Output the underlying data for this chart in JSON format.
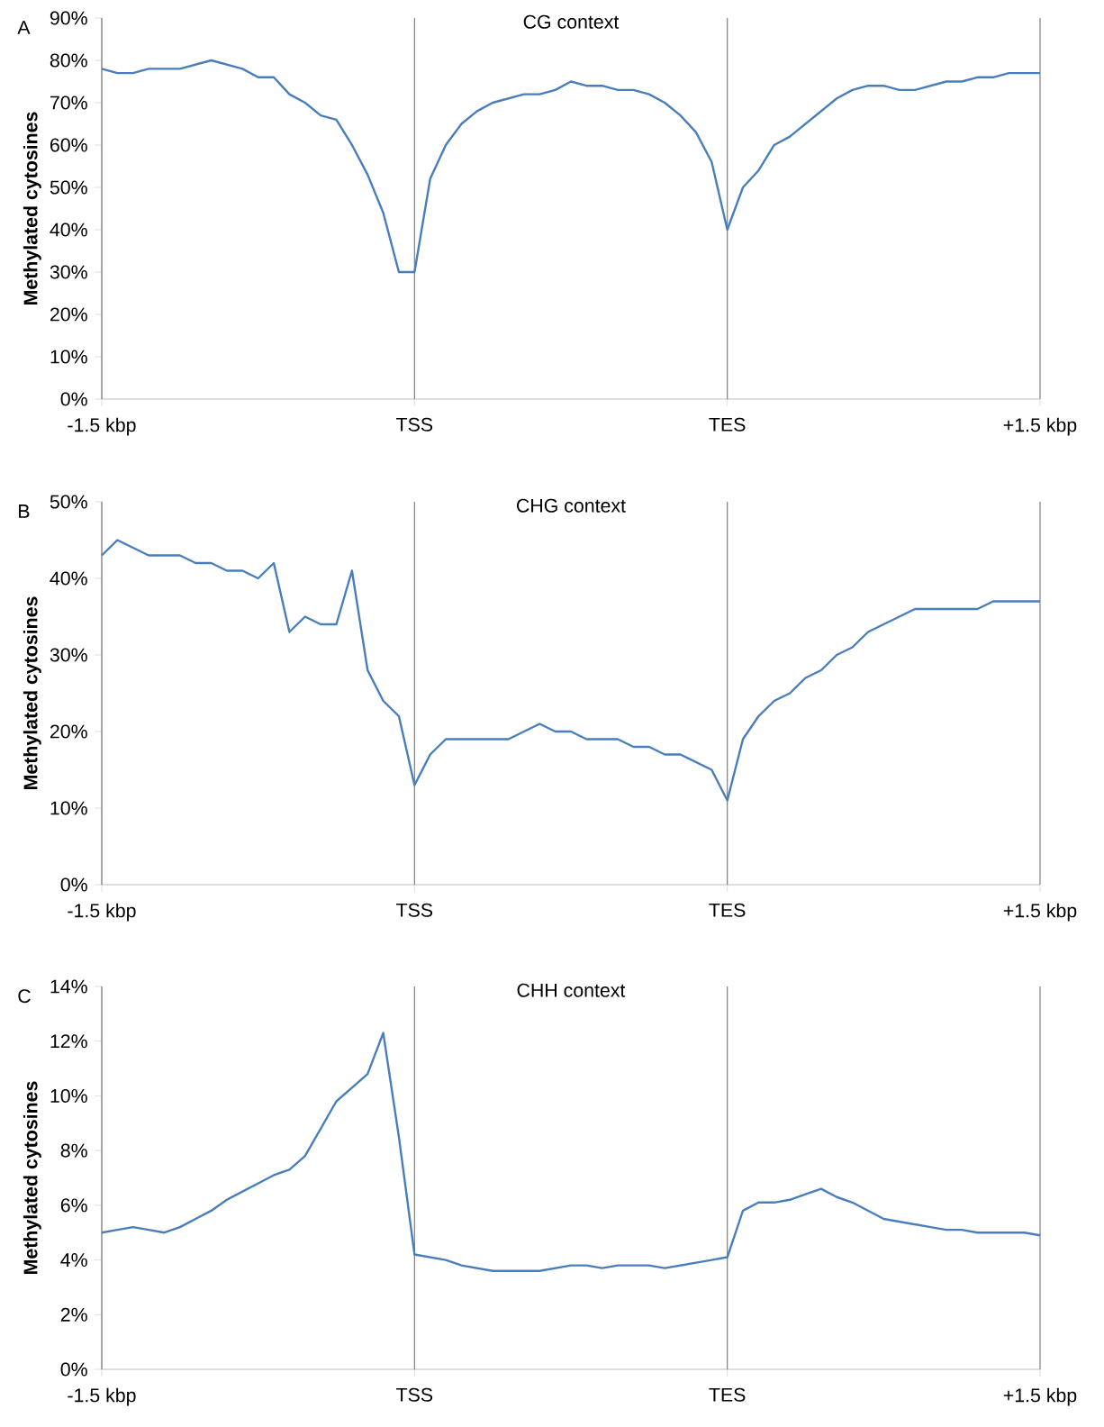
{
  "chart_data": [
    {
      "type": "line",
      "title": "CG context",
      "ylabel": "Methylated cytosines",
      "annotations": [
        "A"
      ],
      "grid": "x",
      "categories": [
        "-1.5 kbp",
        null,
        null,
        null,
        null,
        null,
        null,
        null,
        null,
        null,
        null,
        null,
        null,
        null,
        null,
        null,
        null,
        null,
        null,
        null,
        "TSS",
        null,
        null,
        null,
        null,
        null,
        null,
        null,
        null,
        null,
        null,
        null,
        null,
        null,
        null,
        null,
        null,
        null,
        null,
        null,
        "TES",
        null,
        null,
        null,
        null,
        null,
        null,
        null,
        null,
        null,
        null,
        null,
        null,
        null,
        null,
        null,
        null,
        null,
        null,
        null,
        "+1.5 kbp"
      ],
      "ylim": [
        0,
        90
      ],
      "yticks": [
        {
          "value": 0,
          "label": "0%"
        },
        {
          "value": 10,
          "label": "10%"
        },
        {
          "value": 20,
          "label": "20%"
        },
        {
          "value": 30,
          "label": "30%"
        },
        {
          "value": 40,
          "label": "40%"
        },
        {
          "value": 50,
          "label": "50%"
        },
        {
          "value": 60,
          "label": "60%"
        },
        {
          "value": 70,
          "label": "70%"
        },
        {
          "value": 80,
          "label": "80%"
        },
        {
          "value": 90,
          "label": "90%"
        }
      ],
      "series": [
        {
          "color": "#4a7ebb",
          "values": [
            78,
            77,
            77,
            78,
            78,
            78,
            79,
            80,
            79,
            78,
            76,
            76,
            72,
            70,
            67,
            66,
            60,
            53,
            44,
            30,
            30,
            52,
            60,
            65,
            68,
            70,
            71,
            72,
            72,
            73,
            75,
            74,
            74,
            73,
            73,
            72,
            70,
            67,
            63,
            56,
            40,
            50,
            54,
            60,
            62,
            65,
            68,
            71,
            73,
            74,
            74,
            73,
            73,
            74,
            75,
            75,
            76,
            76,
            77,
            77,
            77
          ]
        }
      ]
    },
    {
      "type": "line",
      "title": "CHG context",
      "ylabel": "Methylated cytosines",
      "annotations": [
        "B"
      ],
      "grid": "x",
      "categories": [
        "-1.5 kbp",
        null,
        null,
        null,
        null,
        null,
        null,
        null,
        null,
        null,
        null,
        null,
        null,
        null,
        null,
        null,
        null,
        null,
        null,
        null,
        "TSS",
        null,
        null,
        null,
        null,
        null,
        null,
        null,
        null,
        null,
        null,
        null,
        null,
        null,
        null,
        null,
        null,
        null,
        null,
        null,
        "TES",
        null,
        null,
        null,
        null,
        null,
        null,
        null,
        null,
        null,
        null,
        null,
        null,
        null,
        null,
        null,
        null,
        null,
        null,
        null,
        "+1.5 kbp"
      ],
      "ylim": [
        0,
        50
      ],
      "yticks": [
        {
          "value": 0,
          "label": "0%"
        },
        {
          "value": 10,
          "label": "10%"
        },
        {
          "value": 20,
          "label": "20%"
        },
        {
          "value": 30,
          "label": "30%"
        },
        {
          "value": 40,
          "label": "40%"
        },
        {
          "value": 50,
          "label": "50%"
        }
      ],
      "series": [
        {
          "color": "#4a7ebb",
          "values": [
            43,
            45,
            44,
            43,
            43,
            43,
            42,
            42,
            41,
            41,
            40,
            42,
            33,
            35,
            34,
            34,
            41,
            28,
            24,
            22,
            13,
            17,
            19,
            19,
            19,
            19,
            19,
            20,
            21,
            20,
            20,
            19,
            19,
            19,
            18,
            18,
            17,
            17,
            16,
            15,
            11,
            19,
            22,
            24,
            25,
            27,
            28,
            30,
            31,
            33,
            34,
            35,
            36,
            36,
            36,
            36,
            36,
            37,
            37,
            37,
            37
          ]
        }
      ]
    },
    {
      "type": "line",
      "title": "CHH context",
      "ylabel": "Methylated cytosines",
      "annotations": [
        "C"
      ],
      "grid": "x",
      "categories": [
        "-1.5 kbp",
        null,
        null,
        null,
        null,
        null,
        null,
        null,
        null,
        null,
        null,
        null,
        null,
        null,
        null,
        null,
        null,
        null,
        null,
        null,
        "TSS",
        null,
        null,
        null,
        null,
        null,
        null,
        null,
        null,
        null,
        null,
        null,
        null,
        null,
        null,
        null,
        null,
        null,
        null,
        null,
        "TES",
        null,
        null,
        null,
        null,
        null,
        null,
        null,
        null,
        null,
        null,
        null,
        null,
        null,
        null,
        null,
        null,
        null,
        null,
        null,
        "+1.5 kbp"
      ],
      "ylim": [
        0,
        14
      ],
      "yticks": [
        {
          "value": 0,
          "label": "0%"
        },
        {
          "value": 2,
          "label": "2%"
        },
        {
          "value": 4,
          "label": "4%"
        },
        {
          "value": 6,
          "label": "6%"
        },
        {
          "value": 8,
          "label": "8%"
        },
        {
          "value": 10,
          "label": "10%"
        },
        {
          "value": 12,
          "label": "12%"
        },
        {
          "value": 14,
          "label": "14%"
        }
      ],
      "series": [
        {
          "color": "#4a7ebb",
          "values": [
            5,
            5.1,
            5.2,
            5.1,
            5,
            5.2,
            5.5,
            5.8,
            6.2,
            6.5,
            6.8,
            7.1,
            7.3,
            7.8,
            8.8,
            9.8,
            10.3,
            10.8,
            12.3,
            8.5,
            4.2,
            4.1,
            4,
            3.8,
            3.7,
            3.6,
            3.6,
            3.6,
            3.6,
            3.7,
            3.8,
            3.8,
            3.7,
            3.8,
            3.8,
            3.8,
            3.7,
            3.8,
            3.9,
            4,
            4.1,
            5.8,
            6.1,
            6.1,
            6.2,
            6.4,
            6.6,
            6.3,
            6.1,
            5.8,
            5.5,
            5.4,
            5.3,
            5.2,
            5.1,
            5.1,
            5,
            5,
            5,
            5,
            4.9
          ]
        }
      ]
    }
  ]
}
